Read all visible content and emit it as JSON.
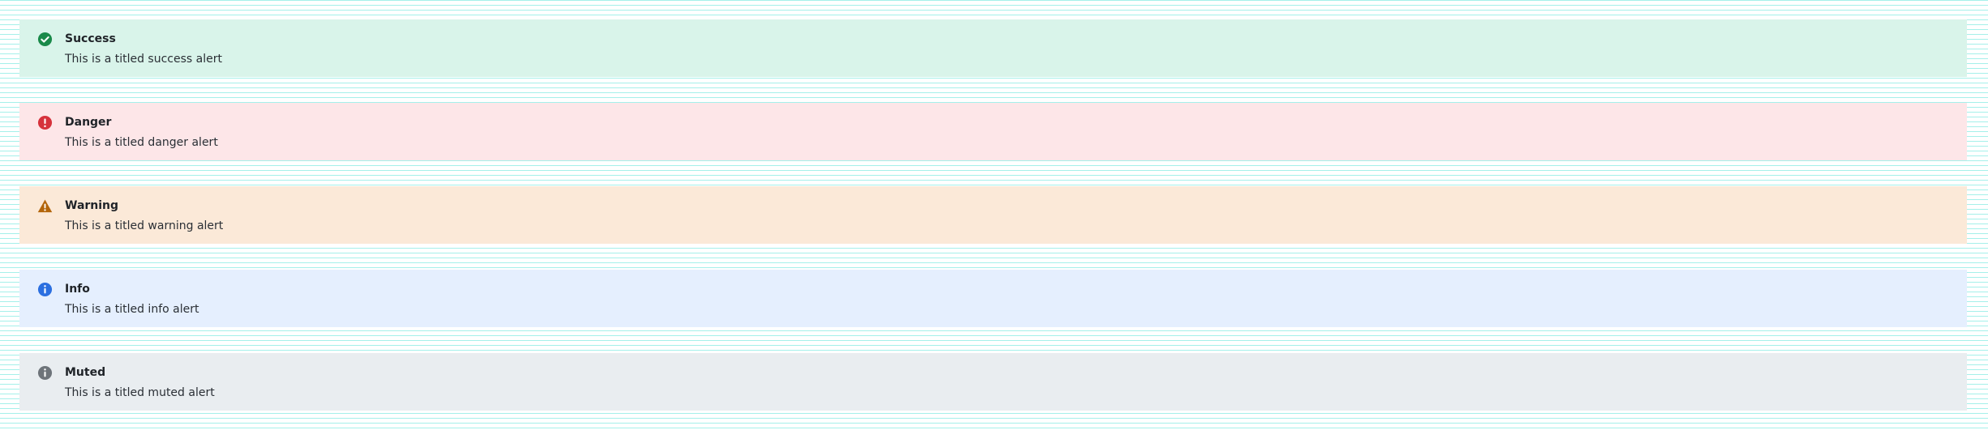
{
  "alerts": [
    {
      "variant": "success",
      "icon": "check-circle-icon",
      "title": "Success",
      "message": "This is a titled success alert",
      "background": "#d9f4ea",
      "icon_color": "#1a8a4a"
    },
    {
      "variant": "danger",
      "icon": "exclamation-circle-icon",
      "title": "Danger",
      "message": "This is a titled danger alert",
      "background": "#fde6e8",
      "icon_color": "#d6323c"
    },
    {
      "variant": "warning",
      "icon": "warning-triangle-icon",
      "title": "Warning",
      "message": "This is a titled warning alert",
      "background": "#fbe9d8",
      "icon_color": "#b3650b"
    },
    {
      "variant": "info",
      "icon": "info-circle-icon",
      "title": "Info",
      "message": "This is a titled info alert",
      "background": "#e5effe",
      "icon_color": "#2b6fe0"
    },
    {
      "variant": "muted",
      "icon": "info-circle-icon",
      "title": "Muted",
      "message": "This is a titled muted alert",
      "background": "#e9edf0",
      "icon_color": "#6e747a"
    }
  ]
}
